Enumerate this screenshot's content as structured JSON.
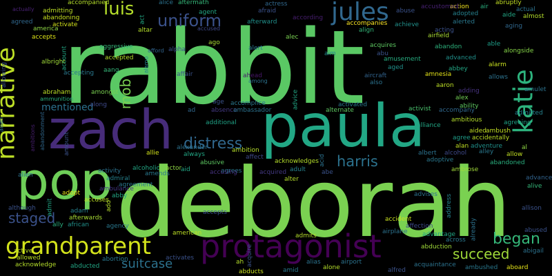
{
  "words": [
    {
      "text": "rabbit",
      "color": "#5ac864"
    },
    {
      "text": "deborah",
      "color": "#7ad151"
    },
    {
      "text": "paula",
      "color": "#22a785"
    },
    {
      "text": "zach",
      "color": "#472c7a"
    },
    {
      "text": "pop",
      "color": "#6ece58"
    },
    {
      "text": "protagonist",
      "color": "#440154"
    },
    {
      "text": "grandparent",
      "color": "#d2e21b"
    },
    {
      "text": "narrative",
      "color": "#bddf26"
    },
    {
      "text": "katie",
      "color": "#2db27d"
    },
    {
      "text": "jules",
      "color": "#31688e"
    },
    {
      "text": "luis",
      "color": "#b5de2b"
    },
    {
      "text": "uniform",
      "color": "#3b528b"
    },
    {
      "text": "distress",
      "color": "#31688e"
    },
    {
      "text": "harris",
      "color": "#2c728e"
    },
    {
      "text": "mob",
      "color": "#7ad151"
    },
    {
      "text": "staged",
      "color": "#3b528b"
    },
    {
      "text": "began",
      "color": "#35b779"
    },
    {
      "text": "succeed",
      "color": "#a0da39"
    },
    {
      "text": "suitcase",
      "color": "#2c728e"
    },
    {
      "text": "mentioned",
      "color": "#2c728e"
    },
    {
      "text": "accompanied",
      "color": "#b5de2b"
    },
    {
      "text": "admitting",
      "color": "#bddf26"
    },
    {
      "text": "abandoning",
      "color": "#c8e020"
    },
    {
      "text": "activate",
      "color": "#d2e21b"
    },
    {
      "text": "actually",
      "color": "#482173"
    },
    {
      "text": "agreed",
      "color": "#31688e"
    },
    {
      "text": "america",
      "color": "#8fd744"
    },
    {
      "text": "accepts",
      "color": "#dde318"
    },
    {
      "text": "albright",
      "color": "#a0da39"
    },
    {
      "text": "aggressive",
      "color": "#35b779"
    },
    {
      "text": "accepting",
      "color": "#2a788e"
    },
    {
      "text": "abraham",
      "color": "#bddf26"
    },
    {
      "text": "ammunition",
      "color": "#2ab07f"
    },
    {
      "text": "amongst",
      "color": "#7ad151"
    },
    {
      "text": "along",
      "color": "#3e4989"
    },
    {
      "text": "accepted",
      "color": "#b5de2b"
    },
    {
      "text": "aang",
      "color": "#35b779"
    },
    {
      "text": "alpha",
      "color": "#3b528b"
    },
    {
      "text": "afford",
      "color": "#32648e"
    },
    {
      "text": "altar",
      "color": "#b5de2b"
    },
    {
      "text": "alice",
      "color": "#2c728e"
    },
    {
      "text": "aftermath",
      "color": "#35b779"
    },
    {
      "text": "agent",
      "color": "#22a785"
    },
    {
      "text": "accused",
      "color": "#3e4989"
    },
    {
      "text": "afterward",
      "color": "#21918c"
    },
    {
      "text": "actress",
      "color": "#31688e"
    },
    {
      "text": "afraid",
      "color": "#3b528b"
    },
    {
      "text": "according",
      "color": "#481f70"
    },
    {
      "text": "accompanies",
      "color": "#fde725"
    },
    {
      "text": "align",
      "color": "#35b779"
    },
    {
      "text": "abuse",
      "color": "#3b528b"
    },
    {
      "text": "achieve",
      "color": "#21918c"
    },
    {
      "text": "acquires",
      "color": "#5ec962"
    },
    {
      "text": "abu",
      "color": "#3b528b"
    },
    {
      "text": "amusement",
      "color": "#27ad81"
    },
    {
      "text": "aged",
      "color": "#21918c"
    },
    {
      "text": "aircraft",
      "color": "#32648e"
    },
    {
      "text": "also",
      "color": "#2c728e"
    },
    {
      "text": "action",
      "color": "#f4e61e"
    },
    {
      "text": "adopted",
      "color": "#26828e"
    },
    {
      "text": "alerted",
      "color": "#2a788e"
    },
    {
      "text": "airfield",
      "color": "#a8db34"
    },
    {
      "text": "acting",
      "color": "#3b528b"
    },
    {
      "text": "advanced",
      "color": "#21918c"
    },
    {
      "text": "abandon",
      "color": "#2db27d"
    },
    {
      "text": "air",
      "color": "#2ab07f"
    },
    {
      "text": "abruptly",
      "color": "#c2df23"
    },
    {
      "text": "actual",
      "color": "#2c728e"
    },
    {
      "text": "aide",
      "color": "#22a785"
    },
    {
      "text": "almost",
      "color": "#b5de2b"
    },
    {
      "text": "aging",
      "color": "#31688e"
    },
    {
      "text": "able",
      "color": "#1f9e89"
    },
    {
      "text": "alongside",
      "color": "#86d549"
    },
    {
      "text": "alarm",
      "color": "#c8e020"
    },
    {
      "text": "allows",
      "color": "#2c728e"
    },
    {
      "text": "abbey",
      "color": "#22a785"
    },
    {
      "text": "amnesia",
      "color": "#e5e419"
    },
    {
      "text": "aaron",
      "color": "#bddf26"
    },
    {
      "text": "adding",
      "color": "#46327e"
    },
    {
      "text": "amulet",
      "color": "#2c728e"
    },
    {
      "text": "alex",
      "color": "#73d056"
    },
    {
      "text": "ability",
      "color": "#5ec962"
    },
    {
      "text": "accompany",
      "color": "#31688e"
    },
    {
      "text": "admitted",
      "color": "#26828e"
    },
    {
      "text": "ambitious",
      "color": "#b5de2b"
    },
    {
      "text": "agreeing",
      "color": "#20a386"
    },
    {
      "text": "activist",
      "color": "#4ac16d"
    },
    {
      "text": "alliance",
      "color": "#22a785"
    },
    {
      "text": "aided",
      "color": "#c2df23"
    },
    {
      "text": "ambush",
      "color": "#c2df23"
    },
    {
      "text": "agree",
      "color": "#1f9e89"
    },
    {
      "text": "accidentally",
      "color": "#bddf26"
    },
    {
      "text": "albert",
      "color": "#2c728e"
    },
    {
      "text": "alcohol",
      "color": "#3e4989"
    },
    {
      "text": "alan",
      "color": "#c2df23"
    },
    {
      "text": "adventure",
      "color": "#21918c"
    },
    {
      "text": "al",
      "color": "#8fd744"
    },
    {
      "text": "allow",
      "color": "#c2df23"
    },
    {
      "text": "adoptive",
      "color": "#2a788e"
    },
    {
      "text": "abandoned",
      "color": "#2ab07f"
    },
    {
      "text": "alley",
      "color": "#2a788e"
    },
    {
      "text": "ambrose",
      "color": "#a0da39"
    },
    {
      "text": "advance",
      "color": "#32648e"
    },
    {
      "text": "alive",
      "color": "#35b779"
    },
    {
      "text": "alien",
      "color": "#2c728e"
    },
    {
      "text": "activity",
      "color": "#2c728e"
    },
    {
      "text": "admiral",
      "color": "#26828e"
    },
    {
      "text": "alcoholic",
      "color": "#22a785"
    },
    {
      "text": "amends",
      "color": "#2a788e"
    },
    {
      "text": "actor",
      "color": "#8fd744"
    },
    {
      "text": "ambulance",
      "color": "#443983"
    },
    {
      "text": "agreement",
      "color": "#2a788e"
    },
    {
      "text": "alexander",
      "color": "#2c728e"
    },
    {
      "text": "always",
      "color": "#22a785"
    },
    {
      "text": "allie",
      "color": "#d2e21b"
    },
    {
      "text": "ambition",
      "color": "#b5de2b"
    },
    {
      "text": "affect",
      "color": "#3e4989"
    },
    {
      "text": "agrees",
      "color": "#2a788e"
    },
    {
      "text": "additional",
      "color": "#20a386"
    },
    {
      "text": "absence",
      "color": "#443983"
    },
    {
      "text": "ad",
      "color": "#31688e"
    },
    {
      "text": "age",
      "color": "#3b528b"
    },
    {
      "text": "accomplice",
      "color": "#2a788e"
    },
    {
      "text": "ambassador",
      "color": "#2c728e"
    },
    {
      "text": "advice",
      "color": "#22a785"
    },
    {
      "text": "alternate",
      "color": "#5ec962"
    },
    {
      "text": "activated",
      "color": "#2a788e"
    },
    {
      "text": "acknowledges",
      "color": "#b5de2b"
    },
    {
      "text": "alter",
      "color": "#b5de2b"
    },
    {
      "text": "adult",
      "color": "#26828e"
    },
    {
      "text": "acid",
      "color": "#2c728e"
    },
    {
      "text": "abe",
      "color": "#3b528b"
    },
    {
      "text": "acquired",
      "color": "#443983"
    },
    {
      "text": "abusive",
      "color": "#5ec962"
    },
    {
      "text": "accusing",
      "color": "#46327e"
    },
    {
      "text": "aid",
      "color": "#22a785"
    },
    {
      "text": "ahead",
      "color": "#48186a"
    },
    {
      "text": "among",
      "color": "#2c728e"
    },
    {
      "text": "affair",
      "color": "#3b528b"
    },
    {
      "text": "alamo",
      "color": "#26828e"
    },
    {
      "text": "alert",
      "color": "#2a788e"
    },
    {
      "text": "alec",
      "color": "#7ad151"
    },
    {
      "text": "aim",
      "color": "#238a8d"
    },
    {
      "text": "ago",
      "color": "#a8db34"
    },
    {
      "text": "adopt",
      "color": "#e5e419"
    },
    {
      "text": "abby",
      "color": "#22a785"
    },
    {
      "text": "accuses",
      "color": "#bddf26"
    },
    {
      "text": "adam",
      "color": "#26828e"
    },
    {
      "text": "afterwards",
      "color": "#a8db34"
    },
    {
      "text": "african",
      "color": "#21918c"
    },
    {
      "text": "ally",
      "color": "#29af7f"
    },
    {
      "text": "agency",
      "color": "#2a788e"
    },
    {
      "text": "american",
      "color": "#bddf26"
    },
    {
      "text": "accepts",
      "color": "#3b528b"
    },
    {
      "text": "admit",
      "color": "#22a785"
    },
    {
      "text": "accident",
      "color": "#c8e020"
    },
    {
      "text": "airplane",
      "color": "#2c728e"
    },
    {
      "text": "advises",
      "color": "#2c728e"
    },
    {
      "text": "address",
      "color": "#26828e"
    },
    {
      "text": "affection",
      "color": "#3e4989"
    },
    {
      "text": "advantage",
      "color": "#22a785"
    },
    {
      "text": "across",
      "color": "#2a788e"
    },
    {
      "text": "abduction",
      "color": "#a0da39"
    },
    {
      "text": "allison",
      "color": "#3b528b"
    },
    {
      "text": "abused",
      "color": "#3b528b"
    },
    {
      "text": "abigail",
      "color": "#2c728e"
    },
    {
      "text": "admits",
      "color": "#b5de2b"
    },
    {
      "text": "already",
      "color": "#2c728e"
    },
    {
      "text": "allowed",
      "color": "#bddf26"
    },
    {
      "text": "acknowledge",
      "color": "#b5de2b"
    },
    {
      "text": "abducted",
      "color": "#22a785"
    },
    {
      "text": "abortion",
      "color": "#2a788e"
    },
    {
      "text": "activates",
      "color": "#3b528b"
    },
    {
      "text": "acquire",
      "color": "#3b528b"
    },
    {
      "text": "ah",
      "color": "#b5de2b"
    },
    {
      "text": "alias",
      "color": "#2c728e"
    },
    {
      "text": "airport",
      "color": "#2c728e"
    },
    {
      "text": "alone",
      "color": "#b5de2b"
    },
    {
      "text": "amid",
      "color": "#2a788e"
    },
    {
      "text": "abducts",
      "color": "#c8e020"
    },
    {
      "text": "alfred",
      "color": "#3b528b"
    },
    {
      "text": "acquaintance",
      "color": "#2c728e"
    },
    {
      "text": "ambushed",
      "color": "#2a788e"
    },
    {
      "text": "aboard",
      "color": "#e5e419"
    },
    {
      "text": "active",
      "color": "#bddf26"
    },
    {
      "text": "amount",
      "color": "#3b528b"
    },
    {
      "text": "allan",
      "color": "#2c728e"
    },
    {
      "text": "allowing",
      "color": "#3b528b"
    },
    {
      "text": "ambitions",
      "color": "#481f70"
    },
    {
      "text": "although",
      "color": "#3b528b"
    },
    {
      "text": "abandonment",
      "color": "#31688e"
    },
    {
      "text": "add",
      "color": "#b5de2b"
    },
    {
      "text": "account",
      "color": "#22a785"
    },
    {
      "text": "act",
      "color": "#22a785"
    },
    {
      "text": "accustomed",
      "color": "#482173"
    }
  ]
}
